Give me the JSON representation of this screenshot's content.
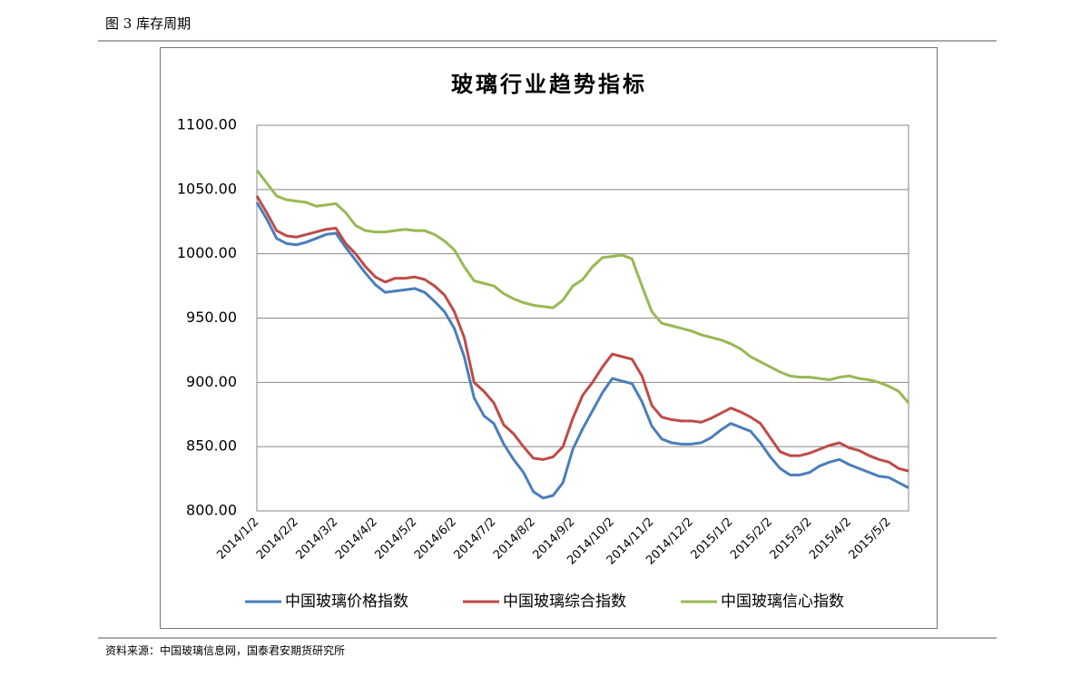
{
  "header": {
    "title": "图 3 库存周期"
  },
  "footer": {
    "source": "资料来源：中国玻璃信息网，国泰君安期货研究所"
  },
  "chart_data": {
    "type": "line",
    "title": "玻璃行业趋势指标",
    "categories": [
      "2014/1/2",
      null,
      null,
      null,
      "2014/2/2",
      null,
      null,
      null,
      "2014/3/2",
      null,
      null,
      null,
      "2014/4/2",
      null,
      null,
      null,
      "2014/5/2",
      null,
      null,
      null,
      "2014/6/2",
      null,
      null,
      null,
      "2014/7/2",
      null,
      null,
      null,
      "2014/8/2",
      null,
      null,
      null,
      "2014/9/2",
      null,
      null,
      null,
      "2014/10/2",
      null,
      null,
      null,
      "2014/11/2",
      null,
      null,
      null,
      "2014/12/2",
      null,
      null,
      null,
      "2015/1/2",
      null,
      null,
      null,
      "2015/2/2",
      null,
      null,
      null,
      "2015/3/2",
      null,
      null,
      null,
      "2015/4/2",
      null,
      null,
      null,
      "2015/5/2",
      null,
      null
    ],
    "ylim": [
      800,
      1100
    ],
    "yticks": [
      {
        "value": 800,
        "label": "800.00"
      },
      {
        "value": 850,
        "label": "850.00"
      },
      {
        "value": 900,
        "label": "900.00"
      },
      {
        "value": 950,
        "label": "950.00"
      },
      {
        "value": 1000,
        "label": "1000.00"
      },
      {
        "value": 1050,
        "label": "1050.00"
      },
      {
        "value": 1100,
        "label": "1100.00"
      }
    ],
    "grid": true,
    "legend": "bottom",
    "series": [
      {
        "name": "中国玻璃价格指数",
        "color": "#4a7ebb",
        "values": [
          1040,
          1027,
          1012,
          1008,
          1007,
          1009,
          1012,
          1015,
          1016,
          1005,
          995,
          985,
          976,
          970,
          971,
          972,
          973,
          970,
          963,
          955,
          942,
          920,
          888,
          874,
          868,
          852,
          840,
          830,
          815,
          810,
          812,
          822,
          848,
          864,
          878,
          892,
          903,
          901,
          899,
          885,
          866,
          856,
          853,
          852,
          852,
          853,
          857,
          863,
          868,
          865,
          862,
          853,
          842,
          833,
          828,
          828,
          830,
          835,
          838,
          840,
          836,
          833,
          830,
          827,
          826,
          822,
          818
        ]
      },
      {
        "name": "中国玻璃综合指数",
        "color": "#be4b48",
        "values": [
          1045,
          1032,
          1018,
          1014,
          1013,
          1015,
          1017,
          1019,
          1020,
          1008,
          1000,
          990,
          982,
          978,
          981,
          981,
          982,
          980,
          975,
          968,
          955,
          935,
          900,
          893,
          884,
          867,
          860,
          850,
          841,
          840,
          842,
          850,
          872,
          890,
          900,
          912,
          922,
          920,
          918,
          905,
          882,
          873,
          871,
          870,
          870,
          869,
          872,
          876,
          880,
          877,
          873,
          868,
          857,
          846,
          843,
          843,
          845,
          848,
          851,
          853,
          849,
          847,
          843,
          840,
          838,
          833,
          831
        ]
      },
      {
        "name": "中国玻璃信心指数",
        "color": "#98b954",
        "values": [
          1065,
          1055,
          1045,
          1042,
          1041,
          1040,
          1037,
          1038,
          1039,
          1032,
          1022,
          1018,
          1017,
          1017,
          1018,
          1019,
          1018,
          1018,
          1015,
          1010,
          1003,
          990,
          979,
          977,
          975,
          969,
          965,
          962,
          960,
          959,
          958,
          964,
          975,
          980,
          990,
          997,
          998,
          999,
          996,
          975,
          955,
          946,
          944,
          942,
          940,
          937,
          935,
          933,
          930,
          926,
          920,
          916,
          912,
          908,
          905,
          904,
          904,
          903,
          902,
          904,
          905,
          903,
          902,
          900,
          897,
          893,
          884
        ]
      }
    ]
  }
}
